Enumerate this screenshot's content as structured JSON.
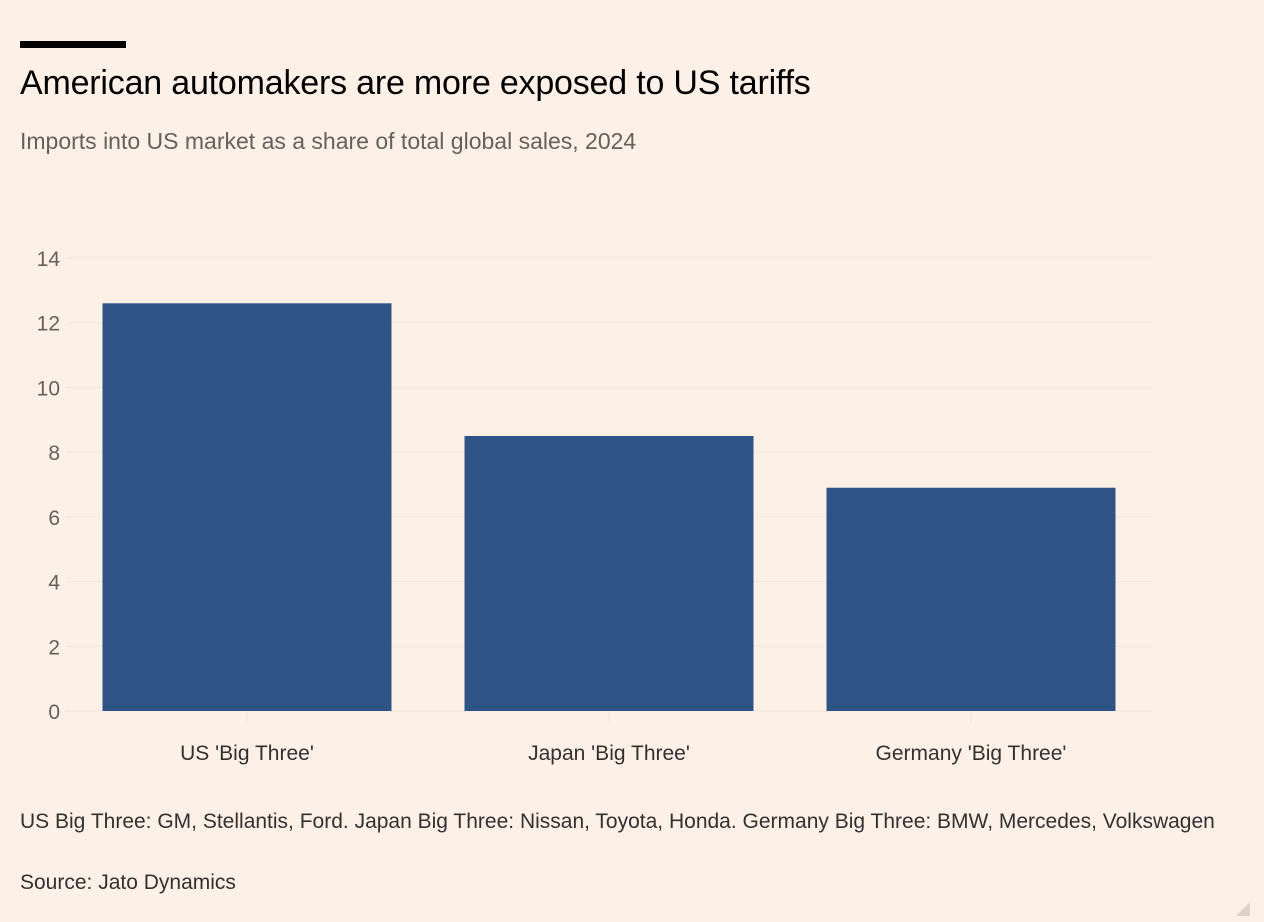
{
  "header": {
    "title": "American automakers are more exposed to US tariffs",
    "subtitle": "Imports into US market as a share of total global sales, 2024"
  },
  "footer": {
    "note": "US Big Three: GM, Stellantis, Ford. Japan Big Three: Nissan, Toyota, Honda. Germany Big Three: BMW, Mercedes, Volkswagen",
    "source": "Source: Jato Dynamics"
  },
  "colors": {
    "background": "#fdf1e7",
    "bar": "#2e5385",
    "gridline": "#efe5dc"
  },
  "chart_data": {
    "type": "bar",
    "title": "American automakers are more exposed to US tariffs",
    "subtitle": "Imports into US market as a share of total global sales, 2024",
    "xlabel": "",
    "ylabel": "",
    "categories": [
      "US 'Big Three'",
      "Japan 'Big Three'",
      "Germany 'Big Three'"
    ],
    "values": [
      12.6,
      8.5,
      6.9
    ],
    "ylim": [
      0,
      14
    ],
    "yticks": [
      0,
      2,
      4,
      6,
      8,
      10,
      12,
      14
    ],
    "grid": true,
    "legend": "none"
  }
}
